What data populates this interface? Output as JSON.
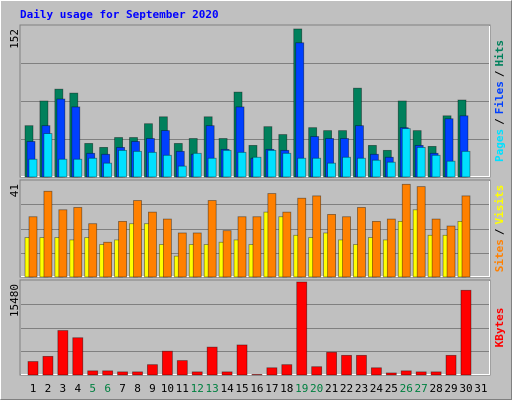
{
  "title": "Daily usage for September 2020",
  "legend_separator": "/",
  "chart_data": [
    {
      "type": "bar",
      "ylim": [
        0,
        152
      ],
      "yticks": [
        152
      ],
      "series": [
        {
          "name": "Pages",
          "color": "#00e0ff",
          "values": [
            18,
            44,
            18,
            18,
            19,
            14,
            27,
            26,
            25,
            22,
            11,
            24,
            19,
            27,
            25,
            20,
            27,
            24,
            19,
            19,
            14,
            20,
            19,
            17,
            15,
            49,
            30,
            22,
            16,
            26,
            0
          ]
        },
        {
          "name": "Files",
          "color": "#0040ff",
          "values": [
            36,
            52,
            79,
            71,
            24,
            23,
            30,
            36,
            39,
            47,
            26,
            23,
            52,
            28,
            71,
            19,
            28,
            27,
            136,
            41,
            39,
            39,
            52,
            23,
            20,
            50,
            32,
            24,
            59,
            62,
            0
          ]
        },
        {
          "name": "Hits",
          "color": "#00805c",
          "values": [
            52,
            77,
            89,
            85,
            34,
            30,
            40,
            40,
            54,
            61,
            34,
            39,
            61,
            39,
            86,
            32,
            51,
            43,
            150,
            50,
            47,
            47,
            90,
            32,
            27,
            77,
            47,
            31,
            62,
            78,
            0
          ]
        }
      ]
    },
    {
      "type": "bar",
      "ylim": [
        0,
        41
      ],
      "yticks": [
        41
      ],
      "series": [
        {
          "name": "Sites",
          "color": "#ff8000",
          "values": [
            26,
            37,
            29,
            30,
            23,
            15,
            24,
            33,
            28,
            25,
            19,
            19,
            33,
            20,
            26,
            26,
            36,
            28,
            34,
            35,
            27,
            26,
            30,
            24,
            25,
            40,
            39,
            25,
            22,
            35,
            0
          ]
        },
        {
          "name": "Visits",
          "color": "#ffff00",
          "values": [
            17,
            17,
            17,
            16,
            17,
            14,
            16,
            23,
            23,
            14,
            9,
            14,
            14,
            15,
            16,
            14,
            28,
            26,
            18,
            17,
            19,
            16,
            14,
            17,
            16,
            24,
            29,
            18,
            18,
            24,
            0
          ]
        }
      ]
    },
    {
      "type": "bar",
      "ylim": [
        0,
        15480
      ],
      "yticks": [
        15480
      ],
      "categories": [
        "1",
        "2",
        "3",
        "4",
        "5",
        "6",
        "7",
        "8",
        "9",
        "10",
        "11",
        "12",
        "13",
        "14",
        "15",
        "16",
        "17",
        "18",
        "19",
        "20",
        "21",
        "22",
        "23",
        "24",
        "25",
        "26",
        "27",
        "28",
        "29",
        "30",
        "31"
      ],
      "category_colors": [
        "#000000",
        "#000000",
        "#000000",
        "#000000",
        "#008040",
        "#008040",
        "#000000",
        "#000000",
        "#000000",
        "#000000",
        "#000000",
        "#008040",
        "#008040",
        "#000000",
        "#000000",
        "#000000",
        "#000000",
        "#000000",
        "#008040",
        "#008040",
        "#000000",
        "#000000",
        "#000000",
        "#000000",
        "#000000",
        "#008040",
        "#008040",
        "#000000",
        "#000000",
        "#000000",
        "#000000"
      ],
      "series": [
        {
          "name": "KBytes",
          "color": "#ff0000",
          "values": [
            2240,
            3100,
            7400,
            6200,
            690,
            690,
            520,
            520,
            1720,
            3960,
            2400,
            520,
            4640,
            520,
            5000,
            100,
            1200,
            1720,
            15480,
            1380,
            3780,
            3270,
            3270,
            1200,
            340,
            690,
            520,
            520,
            3270,
            14100,
            0
          ]
        }
      ]
    }
  ]
}
